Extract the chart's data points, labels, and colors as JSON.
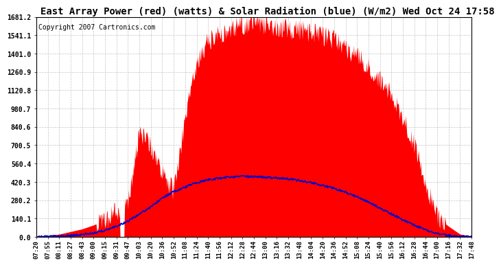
{
  "title": "East Array Power (red) (watts) & Solar Radiation (blue) (W/m2) Wed Oct 24 17:58",
  "copyright": "Copyright 2007 Cartronics.com",
  "ylim": [
    0.0,
    1681.2
  ],
  "yticks": [
    0.0,
    140.1,
    280.2,
    420.3,
    560.4,
    700.5,
    840.6,
    980.7,
    1120.8,
    1260.9,
    1401.0,
    1541.1,
    1681.2
  ],
  "xtick_labels": [
    "07:20",
    "07:55",
    "08:11",
    "08:27",
    "08:43",
    "09:00",
    "09:15",
    "09:31",
    "09:47",
    "10:03",
    "10:20",
    "10:36",
    "10:52",
    "11:08",
    "11:24",
    "11:40",
    "11:56",
    "12:12",
    "12:28",
    "12:44",
    "13:00",
    "13:16",
    "13:32",
    "13:48",
    "14:04",
    "14:20",
    "14:36",
    "14:52",
    "15:08",
    "15:24",
    "15:40",
    "15:56",
    "16:12",
    "16:28",
    "16:44",
    "17:00",
    "17:16",
    "17:32",
    "17:48"
  ],
  "bg_color": "#ffffff",
  "grid_color": "#aaaaaa",
  "red_fill_color": "#ff0000",
  "blue_line_color": "#0000cc",
  "title_font_size": 10,
  "copyright_font_size": 7,
  "red_data": [
    0,
    10,
    20,
    40,
    60,
    90,
    130,
    200,
    280,
    800,
    700,
    480,
    350,
    900,
    1350,
    1500,
    1550,
    1600,
    1620,
    1640,
    1620,
    1600,
    1590,
    1580,
    1560,
    1540,
    1500,
    1450,
    1380,
    1300,
    1200,
    1100,
    900,
    700,
    400,
    150,
    80,
    20,
    5
  ],
  "blue_data": [
    0,
    2,
    5,
    10,
    18,
    30,
    50,
    80,
    120,
    175,
    230,
    295,
    345,
    380,
    415,
    435,
    448,
    458,
    462,
    460,
    455,
    450,
    442,
    430,
    415,
    395,
    370,
    340,
    305,
    265,
    220,
    175,
    130,
    88,
    52,
    25,
    10,
    3,
    0
  ]
}
